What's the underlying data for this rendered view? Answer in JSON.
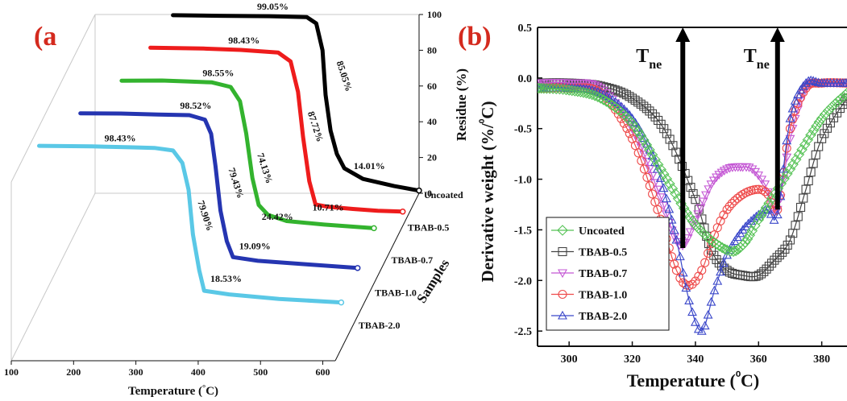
{
  "chart_data": [
    {
      "type": "line",
      "panel_label": "(a",
      "xlabel": "Temperature (°C)",
      "ylabel": "Residue (%)",
      "zlabel": "Samples",
      "xlim": [
        100,
        620
      ],
      "ylim": [
        0,
        100
      ],
      "x_ticks": [
        "100",
        "200",
        "300",
        "400",
        "500",
        "600"
      ],
      "y_ticks": [
        "0",
        "20",
        "40",
        "60",
        "80",
        "100"
      ],
      "series": [
        {
          "name": "Uncoated",
          "color": "#000000",
          "x": [
            225,
            300,
            380,
            440,
            455,
            465,
            470,
            478,
            488,
            500,
            530,
            580,
            620
          ],
          "y": [
            99.6,
            99.3,
            99.05,
            98.5,
            95,
            80,
            55,
            35,
            22,
            14.01,
            8,
            4,
            1.5
          ],
          "annotations": [
            {
              "text": "99.05%",
              "x": 380,
              "y": 99.05
            },
            {
              "text": "85.05%",
              "x": 490,
              "y": 65
            },
            {
              "text": "14.01%",
              "x": 535,
              "y": 10
            }
          ]
        },
        {
          "name": "TBAB-0.5",
          "color": "#ee1c1c",
          "x": [
            215,
            300,
            360,
            420,
            440,
            452,
            460,
            470,
            480,
            500,
            540,
            580,
            620
          ],
          "y": [
            99.7,
            99.2,
            98.43,
            97,
            92,
            75,
            50,
            25,
            12,
            10.71,
            9.5,
            8.5,
            8
          ],
          "annotations": [
            {
              "text": "98.43%",
              "x": 360,
              "y": 98.43
            },
            {
              "text": "87.72%",
              "x": 470,
              "y": 55
            },
            {
              "text": "10.71%",
              "x": 495,
              "y": 5
            }
          ]
        },
        {
          "name": "TBAB-0.7",
          "color": "#33b32e",
          "x": [
            195,
            260,
            300,
            340,
            370,
            385,
            395,
            405,
            415,
            430,
            460,
            520,
            600
          ],
          "y": [
            99.5,
            99.6,
            99.1,
            98.55,
            96,
            88,
            70,
            45,
            30,
            24.42,
            21,
            19,
            17
          ],
          "annotations": [
            {
              "text": "98.55%",
              "x": 345,
              "y": 98.55
            },
            {
              "text": "74.13%",
              "x": 415,
              "y": 50
            },
            {
              "text": "24.42%",
              "x": 440,
              "y": 18
            }
          ]
        },
        {
          "name": "TBAB-1.0",
          "color": "#2535b1",
          "x": [
            155,
            220,
            280,
            330,
            355,
            365,
            372,
            380,
            390,
            400,
            440,
            520,
            600
          ],
          "y": [
            99.5,
            99.4,
            98.8,
            98.52,
            96,
            88,
            70,
            45,
            28,
            19.09,
            17,
            15,
            13
          ],
          "annotations": [
            {
              "text": "98.52%",
              "x": 335,
              "y": 98.52
            },
            {
              "text": "79.43%",
              "x": 395,
              "y": 60
            },
            {
              "text": "19.09%",
              "x": 430,
              "y": 20
            }
          ]
        },
        {
          "name": "TBAB-2.0",
          "color": "#5ac8e6",
          "x": [
            115,
            200,
            260,
            300,
            330,
            345,
            355,
            362,
            372,
            380,
            420,
            500,
            600
          ],
          "y": [
            99.6,
            99.3,
            98.8,
            98.43,
            97,
            90,
            75,
            50,
            30,
            18.53,
            16.5,
            14,
            12
          ],
          "annotations": [
            {
              "text": "98.43%",
              "x": 240,
              "y": 98.43
            },
            {
              "text": "79.90%",
              "x": 372,
              "y": 60
            },
            {
              "text": "18.53%",
              "x": 410,
              "y": 20
            }
          ]
        }
      ]
    },
    {
      "type": "line",
      "panel_label": "(b)",
      "xlabel": "Temperature (⁰C)",
      "ylabel": "Derivative weight (%/⁰C)",
      "xlim": [
        290,
        388
      ],
      "ylim": [
        -2.65,
        0.5
      ],
      "x_ticks": [
        "300",
        "320",
        "340",
        "360",
        "380"
      ],
      "y_ticks": [
        "0.5",
        "0.0",
        "-0.5",
        "-1.0",
        "-1.5",
        "-2.0",
        "-2.5"
      ],
      "annotations": [
        {
          "text": "T",
          "sub": "ne",
          "arrow_x": 336
        },
        {
          "text": "T",
          "sub": "ne",
          "arrow_x": 366
        }
      ],
      "legend_position": "bottom-left",
      "series": [
        {
          "name": "Uncoated",
          "color": "#55c255",
          "marker": "diamond",
          "x": [
            290,
            300,
            310,
            320,
            330,
            340,
            350,
            355,
            360,
            370,
            380,
            388
          ],
          "y": [
            -0.1,
            -0.12,
            -0.2,
            -0.45,
            -0.95,
            -1.45,
            -1.7,
            -1.65,
            -1.4,
            -0.9,
            -0.4,
            -0.15
          ]
        },
        {
          "name": "TBAB-0.5",
          "color": "#444444",
          "marker": "square",
          "x": [
            290,
            300,
            310,
            320,
            330,
            340,
            345,
            350,
            355,
            360,
            365,
            370,
            375,
            380,
            388
          ],
          "y": [
            -0.05,
            -0.05,
            -0.08,
            -0.2,
            -0.5,
            -1.2,
            -1.7,
            -1.9,
            -1.95,
            -1.95,
            -1.8,
            -1.6,
            -1.1,
            -0.6,
            -0.2
          ]
        },
        {
          "name": "TBAB-0.7",
          "color": "#c457d4",
          "marker": "triangle-down",
          "x": [
            290,
            300,
            310,
            320,
            328,
            335,
            340,
            345,
            350,
            355,
            358,
            362,
            366,
            370,
            375,
            380,
            388
          ],
          "y": [
            -0.05,
            -0.05,
            -0.1,
            -0.5,
            -1.1,
            -1.65,
            -1.4,
            -1.05,
            -0.9,
            -0.88,
            -0.9,
            -1.05,
            -1.3,
            -0.6,
            -0.1,
            -0.05,
            -0.05
          ]
        },
        {
          "name": "TBAB-1.0",
          "color": "#ee4a4a",
          "marker": "circle",
          "x": [
            290,
            300,
            310,
            320,
            328,
            334,
            338,
            342,
            346,
            350,
            355,
            360,
            363,
            366,
            370,
            375,
            380,
            388
          ],
          "y": [
            -0.1,
            -0.1,
            -0.15,
            -0.6,
            -1.3,
            -1.9,
            -2.05,
            -1.9,
            -1.55,
            -1.3,
            -1.15,
            -1.1,
            -1.15,
            -1.3,
            -0.5,
            -0.1,
            -0.05,
            -0.05
          ]
        },
        {
          "name": "TBAB-2.0",
          "color": "#3a47c9",
          "marker": "triangle-up",
          "x": [
            290,
            300,
            310,
            320,
            328,
            334,
            338,
            342,
            346,
            350,
            355,
            360,
            363,
            366,
            370,
            375,
            380,
            388
          ],
          "y": [
            -0.1,
            -0.1,
            -0.15,
            -0.4,
            -0.9,
            -1.6,
            -2.2,
            -2.5,
            -2.1,
            -1.75,
            -1.5,
            -1.35,
            -1.3,
            -1.35,
            -0.4,
            -0.05,
            -0.05,
            -0.05
          ]
        }
      ]
    }
  ]
}
